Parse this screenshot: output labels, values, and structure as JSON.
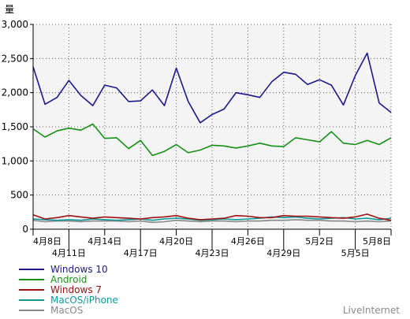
{
  "chart_data": {
    "type": "line",
    "ylabel": "量",
    "ylim": [
      0,
      3000
    ],
    "yticks": [
      0,
      500,
      1000,
      1500,
      2000,
      2500,
      3000
    ],
    "ytick_labels": [
      "0",
      "500",
      "1,000",
      "1,500",
      "2,000",
      "2,500",
      "3,000"
    ],
    "x": [
      "4月8日",
      "4月9日",
      "4月10日",
      "4月11日",
      "4月12日",
      "4月13日",
      "4月14日",
      "4月15日",
      "4月16日",
      "4月17日",
      "4月18日",
      "4月19日",
      "4月20日",
      "4月21日",
      "4月22日",
      "4月23日",
      "4月24日",
      "4月25日",
      "4月26日",
      "4月27日",
      "4月28日",
      "4月29日",
      "4月30日",
      "5月1日",
      "5月2日",
      "5月3日",
      "5月4日",
      "5月5日",
      "5月6日",
      "5月7日",
      "5月8日"
    ],
    "x_tick_labels": [
      {
        "index": 0,
        "label": "4月8日",
        "row": 1
      },
      {
        "index": 3,
        "label": "4月11日",
        "row": 2
      },
      {
        "index": 6,
        "label": "4月14日",
        "row": 1
      },
      {
        "index": 9,
        "label": "4月17日",
        "row": 2
      },
      {
        "index": 12,
        "label": "4月20日",
        "row": 1
      },
      {
        "index": 15,
        "label": "4月23日",
        "row": 2
      },
      {
        "index": 18,
        "label": "4月26日",
        "row": 1
      },
      {
        "index": 21,
        "label": "4月29日",
        "row": 2
      },
      {
        "index": 24,
        "label": "5月2日",
        "row": 1
      },
      {
        "index": 27,
        "label": "5月5日",
        "row": 2
      },
      {
        "index": 30,
        "label": "5月8日",
        "row": 1
      }
    ],
    "grid": true,
    "legend_position": "bottom-left",
    "series": [
      {
        "name": "Windows 10",
        "color": "#1a1a8c",
        "values": [
          2380,
          1830,
          1930,
          2180,
          1960,
          1810,
          2110,
          2070,
          1870,
          1880,
          2040,
          1810,
          2360,
          1870,
          1560,
          1680,
          1760,
          2000,
          1970,
          1930,
          2160,
          2300,
          2270,
          2120,
          2190,
          2110,
          1820,
          2250,
          2580,
          1850,
          1710
        ]
      },
      {
        "name": "Android",
        "color": "#169116",
        "values": [
          1470,
          1350,
          1440,
          1480,
          1450,
          1540,
          1330,
          1340,
          1180,
          1300,
          1080,
          1140,
          1240,
          1120,
          1160,
          1230,
          1220,
          1190,
          1220,
          1260,
          1220,
          1210,
          1340,
          1310,
          1280,
          1430,
          1260,
          1240,
          1300,
          1240,
          1340
        ]
      },
      {
        "name": "Windows 7",
        "color": "#a01010",
        "values": [
          210,
          150,
          170,
          200,
          180,
          160,
          180,
          170,
          160,
          150,
          170,
          180,
          200,
          160,
          140,
          150,
          160,
          200,
          190,
          170,
          170,
          200,
          190,
          190,
          180,
          170,
          160,
          180,
          220,
          160,
          130
        ]
      },
      {
        "name": "MacOS/iPhone",
        "color": "#0d9a9a",
        "values": [
          150,
          140,
          130,
          140,
          130,
          150,
          140,
          130,
          140,
          150,
          130,
          150,
          160,
          150,
          130,
          140,
          150,
          140,
          150,
          160,
          180,
          170,
          180,
          160,
          150,
          160,
          170,
          150,
          160,
          140,
          160
        ]
      },
      {
        "name": "MacOS",
        "color": "#888888",
        "values": [
          130,
          110,
          120,
          120,
          110,
          120,
          120,
          120,
          110,
          120,
          100,
          110,
          130,
          120,
          110,
          120,
          120,
          110,
          120,
          120,
          130,
          130,
          140,
          130,
          130,
          120,
          120,
          110,
          120,
          110,
          120
        ]
      }
    ]
  },
  "watermark": "LiveInternet"
}
